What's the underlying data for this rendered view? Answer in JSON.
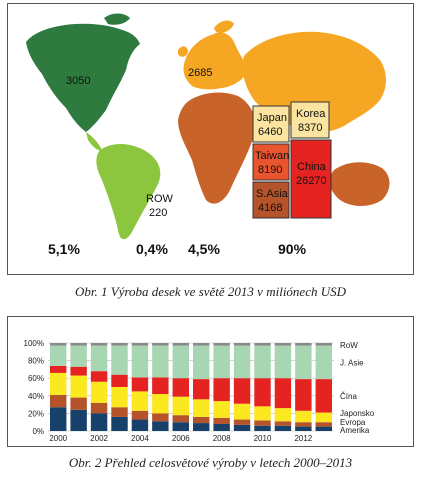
{
  "figure1": {
    "caption": "Obr. 1  Výroba desek ve světě 2013 v miliónech USD",
    "regions": [
      {
        "label": "",
        "value": "3050",
        "color": "#2f7a3f"
      },
      {
        "label": "",
        "value": "2685",
        "color": "#f5a623"
      },
      {
        "label": "ROW",
        "value": "220",
        "color": "#8cc63f"
      },
      {
        "label": "Japan",
        "value": "6460",
        "color": "#fbe4a0"
      },
      {
        "label": "Korea",
        "value": "8370",
        "color": "#fbe4a0"
      },
      {
        "label": "Taiwan",
        "value": "8190",
        "color": "#e8552e"
      },
      {
        "label": "China",
        "value": "26270",
        "color": "#e52421"
      },
      {
        "label": "S.Asia",
        "value": "4168",
        "color": "#b5532b"
      }
    ],
    "shares": [
      "5,1%",
      "0,4%",
      "4,5%",
      "90%"
    ]
  },
  "figure2": {
    "caption": "Obr. 2  Přehled celosvětové výroby v letech 2000–2013",
    "chart_data": {
      "type": "bar",
      "stacked": true,
      "x": [
        "2000",
        "2001",
        "2002",
        "2003",
        "2004",
        "2005",
        "2006",
        "2007",
        "2008",
        "2009",
        "2010",
        "2011",
        "2012",
        "2013"
      ],
      "x_tick_labels": [
        "2000",
        "2002",
        "2004",
        "2006",
        "2008",
        "2010",
        "2012"
      ],
      "y_tick_labels": [
        "0%",
        "20%",
        "40%",
        "60%",
        "80%",
        "100%"
      ],
      "ylim": [
        0,
        100
      ],
      "series": [
        {
          "name": "Amerika",
          "color": "#17406b",
          "values": [
            27,
            24,
            20,
            16,
            13,
            11,
            10,
            9,
            8,
            7,
            6,
            6,
            5,
            5
          ]
        },
        {
          "name": "Evropa",
          "color": "#b5532b",
          "values": [
            14,
            14,
            12,
            11,
            10,
            9,
            8,
            7,
            7,
            6,
            6,
            5,
            5,
            5
          ]
        },
        {
          "name": "Japonsko",
          "color": "#fbe820",
          "values": [
            25,
            25,
            24,
            23,
            22,
            22,
            21,
            20,
            19,
            18,
            16,
            15,
            13,
            11
          ]
        },
        {
          "name": "Čína",
          "color": "#e52421",
          "values": [
            8,
            10,
            12,
            14,
            16,
            19,
            21,
            23,
            26,
            29,
            32,
            34,
            36,
            38
          ]
        },
        {
          "name": "J. Asie",
          "color": "#a8d5b2",
          "values": [
            23,
            24,
            29,
            33,
            36,
            36,
            37,
            38,
            37,
            37,
            37,
            37,
            38,
            38
          ]
        },
        {
          "name": "RoW",
          "color": "#8a8a8a",
          "values": [
            3,
            3,
            3,
            3,
            3,
            3,
            3,
            3,
            3,
            3,
            3,
            3,
            3,
            3
          ]
        }
      ]
    }
  }
}
